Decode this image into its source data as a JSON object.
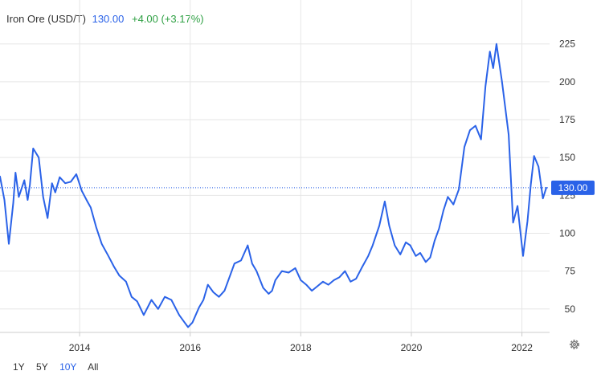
{
  "header": {
    "title": "Iron Ore (USD/T)",
    "price": "130.00",
    "change": "+4.00 (+3.17%)"
  },
  "range_buttons": {
    "b1y": "1Y",
    "b5y": "5Y",
    "b10y": "10Y",
    "ball": "All",
    "active": "10Y"
  },
  "current_label": "130.00",
  "icons": {
    "settings": "gear-icon"
  },
  "colors": {
    "line": "#2a62e8",
    "change_up": "#2ea043",
    "grid": "#e6e6e6"
  },
  "chart_data": {
    "type": "line",
    "title": "",
    "xlabel": "",
    "ylabel": "",
    "grid": true,
    "ylim": [
      34.5,
      236
    ],
    "xlim": [
      2012.56,
      2022.5
    ],
    "x_ticks": [
      "2014",
      "2016",
      "2018",
      "2020",
      "2022"
    ],
    "y_ticks": [
      50,
      75,
      100,
      125,
      150,
      175,
      200,
      225
    ],
    "current_value": 130,
    "series": [
      {
        "name": "",
        "x": [
          2012.56,
          2012.64,
          2012.72,
          2012.8,
          2012.84,
          2012.9,
          2013.0,
          2013.06,
          2013.1,
          2013.16,
          2013.26,
          2013.34,
          2013.42,
          2013.5,
          2013.56,
          2013.64,
          2013.74,
          2013.84,
          2013.94,
          2014.04,
          2014.14,
          2014.2,
          2014.3,
          2014.4,
          2014.52,
          2014.62,
          2014.72,
          2014.84,
          2014.94,
          2015.04,
          2015.16,
          2015.3,
          2015.42,
          2015.54,
          2015.66,
          2015.8,
          2015.9,
          2015.96,
          2016.04,
          2016.16,
          2016.24,
          2016.32,
          2016.42,
          2016.52,
          2016.62,
          2016.72,
          2016.8,
          2016.92,
          2017.04,
          2017.12,
          2017.2,
          2017.32,
          2017.42,
          2017.48,
          2017.54,
          2017.66,
          2017.78,
          2017.9,
          2018.0,
          2018.1,
          2018.2,
          2018.3,
          2018.4,
          2018.5,
          2018.6,
          2018.7,
          2018.8,
          2018.9,
          2019.0,
          2019.1,
          2019.22,
          2019.3,
          2019.42,
          2019.52,
          2019.6,
          2019.7,
          2019.8,
          2019.9,
          2019.98,
          2020.08,
          2020.16,
          2020.26,
          2020.34,
          2020.42,
          2020.5,
          2020.58,
          2020.66,
          2020.76,
          2020.86,
          2020.96,
          2021.06,
          2021.16,
          2021.26,
          2021.34,
          2021.42,
          2021.48,
          2021.54,
          2021.64,
          2021.76,
          2021.84,
          2021.92,
          2022.02,
          2022.1,
          2022.16,
          2022.22,
          2022.3,
          2022.38,
          2022.44
        ],
        "values": [
          137.5,
          122,
          93,
          120,
          140,
          124,
          135,
          122,
          132,
          156,
          150,
          124,
          110,
          133,
          127,
          137,
          133,
          134,
          139,
          128,
          121,
          117,
          104,
          93,
          85,
          78,
          72,
          68,
          58,
          55,
          46,
          56,
          50,
          58,
          56,
          46,
          41,
          38,
          41,
          51,
          56,
          66,
          61,
          58,
          62,
          72,
          80,
          82,
          92,
          80,
          75,
          64,
          60,
          62,
          69,
          75,
          74,
          77,
          69,
          66,
          62,
          65,
          68,
          66,
          69,
          71,
          75,
          68,
          70,
          77,
          85,
          92,
          105,
          121,
          105,
          92,
          86,
          94,
          92,
          85,
          87,
          81,
          84,
          95,
          103,
          115,
          124,
          119,
          129,
          157,
          168,
          171,
          162,
          197,
          220,
          209,
          225,
          200,
          165,
          107,
          118,
          85,
          108,
          132,
          151,
          144,
          123,
          130
        ]
      }
    ]
  }
}
